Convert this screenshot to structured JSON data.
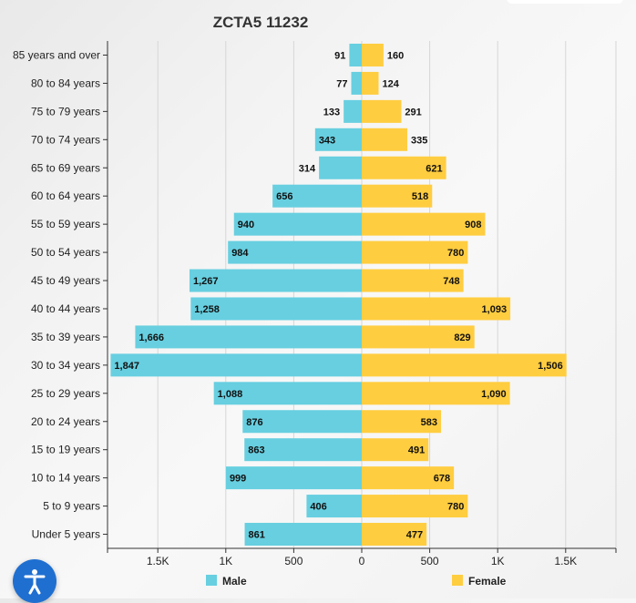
{
  "chart_data": {
    "type": "bar",
    "orientation": "horizontal-diverging",
    "title": "ZCTA5 11232",
    "categories": [
      "85 years and over",
      "80 to 84 years",
      "75 to 79 years",
      "70 to 74 years",
      "65 to 69 years",
      "60 to 64 years",
      "55 to 59 years",
      "50 to 54 years",
      "45 to 49 years",
      "40 to 44 years",
      "35 to 39 years",
      "30 to 34 years",
      "25 to 29 years",
      "20 to 24 years",
      "15 to 19 years",
      "10 to 14 years",
      "5 to 9 years",
      "Under 5 years"
    ],
    "series": [
      {
        "name": "Male",
        "color": "#67cfe0",
        "values": [
          91,
          77,
          133,
          343,
          314,
          656,
          940,
          984,
          1267,
          1258,
          1666,
          1847,
          1088,
          876,
          863,
          999,
          406,
          861
        ],
        "labels": [
          "91",
          "77",
          "133",
          "343",
          "314",
          "656",
          "940",
          "984",
          "1,267",
          "1,258",
          "1,666",
          "1,847",
          "1,088",
          "876",
          "863",
          "999",
          "406",
          "861"
        ]
      },
      {
        "name": "Female",
        "color": "#ffcd40",
        "values": [
          160,
          124,
          291,
          335,
          621,
          518,
          908,
          780,
          748,
          1093,
          829,
          1506,
          1090,
          583,
          491,
          678,
          780,
          477
        ],
        "labels": [
          "160",
          "124",
          "291",
          "335",
          "621",
          "518",
          "908",
          "780",
          "748",
          "1,093",
          "829",
          "1,506",
          "1,090",
          "583",
          "491",
          "678",
          "780",
          "477"
        ]
      }
    ],
    "xlim": [
      -1870,
      1870
    ],
    "xticks": [
      -1500,
      -1000,
      -500,
      0,
      500,
      1000,
      1500
    ],
    "xtick_labels": [
      "1.5K",
      "1K",
      "500",
      "0",
      "500",
      "1K",
      "1.5K"
    ],
    "grid": true,
    "legend_position": "bottom"
  },
  "accessibility_button": {
    "icon": "accessibility-icon",
    "color": "#1f6fd1"
  }
}
